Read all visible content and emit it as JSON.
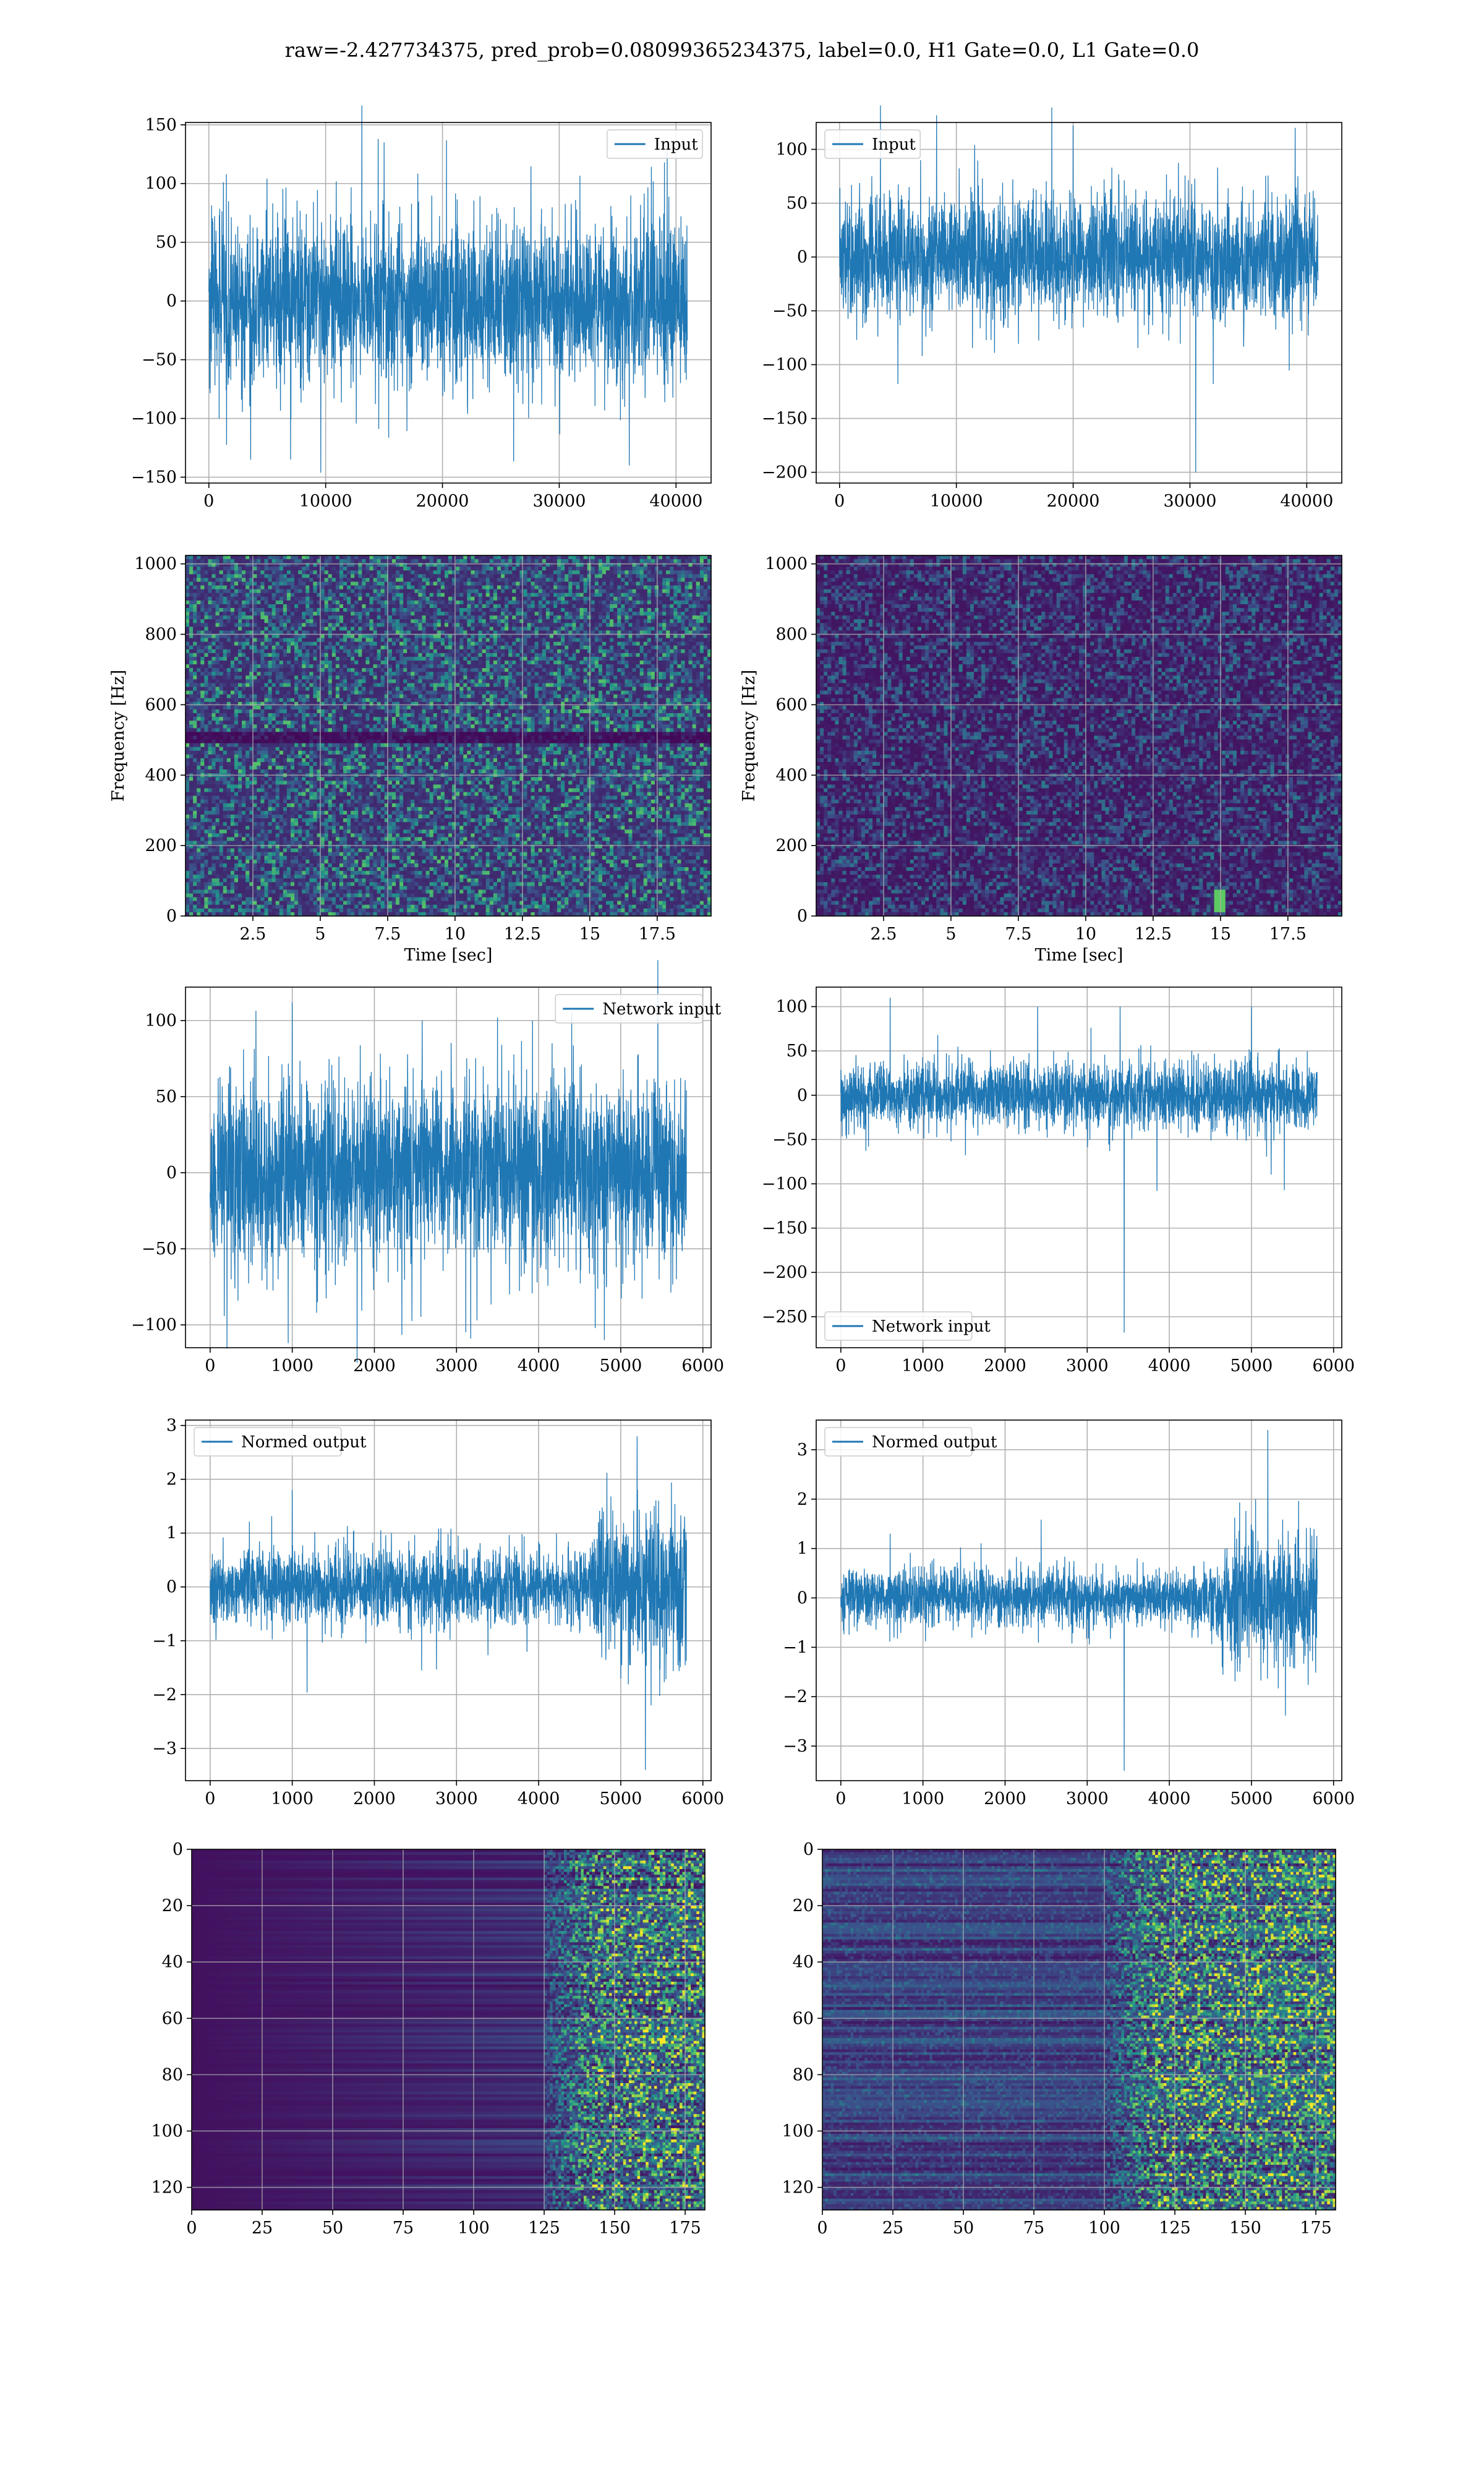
{
  "figure": {
    "title": "raw=-2.427734375, pred_prob=0.08099365234375, label=0.0, H1 Gate=0.0, L1 Gate=0.0"
  },
  "colors": {
    "line": "#1f77b4",
    "grid": "#b0b0b0",
    "viridis_dark": "#440154"
  },
  "chart_data": [
    {
      "id": "h1-input",
      "type": "line",
      "position": "row1-left",
      "xlim": [
        -2000,
        43000
      ],
      "ylim": [
        -155,
        152
      ],
      "xticks": [
        0,
        10000,
        20000,
        30000,
        40000
      ],
      "yticks": [
        -150,
        -100,
        -50,
        0,
        50,
        100,
        150
      ],
      "legend": {
        "loc": "upper-right"
      },
      "series": [
        {
          "name": "Input",
          "n_points": 40960,
          "envelope": [
            [
              0,
              -70,
              70
            ],
            [
              40960,
              -70,
              70
            ]
          ],
          "spikes": [
            [
              1500,
              108
            ],
            [
              7000,
              -135
            ],
            [
              14500,
              138
            ],
            [
              36000,
              -140
            ],
            [
              39000,
              118
            ],
            [
              15000,
              135
            ]
          ]
        }
      ]
    },
    {
      "id": "l1-input",
      "type": "line",
      "position": "row1-right",
      "xlim": [
        -2000,
        43000
      ],
      "ylim": [
        -210,
        125
      ],
      "xticks": [
        0,
        10000,
        20000,
        30000,
        40000
      ],
      "yticks": [
        -200,
        -150,
        -100,
        -50,
        0,
        50,
        100
      ],
      "legend": {
        "loc": "upper-left"
      },
      "series": [
        {
          "name": "Input",
          "n_points": 40960,
          "envelope": [
            [
              0,
              -55,
              55
            ],
            [
              40960,
              -55,
              55
            ]
          ],
          "spikes": [
            [
              30500,
              -200
            ],
            [
              20000,
              122
            ],
            [
              39000,
              120
            ],
            [
              5000,
              -118
            ],
            [
              32000,
              -118
            ]
          ]
        }
      ]
    },
    {
      "id": "h1-spectrogram",
      "type": "heatmap",
      "position": "row2-left",
      "xlabel": "Time [sec]",
      "ylabel": "Frequency [Hz]",
      "xlim": [
        0,
        19.5
      ],
      "ylim": [
        0,
        1024
      ],
      "xticks": [
        2.5,
        5.0,
        7.5,
        10.0,
        12.5,
        15.0,
        17.5
      ],
      "yticks": [
        0,
        200,
        400,
        600,
        800,
        1000
      ],
      "colormap": "viridis",
      "intensity": "moderate",
      "bright_lines_hz": [
        60,
        1000
      ],
      "dark_band_hz": [
        490,
        520
      ]
    },
    {
      "id": "l1-spectrogram",
      "type": "heatmap",
      "position": "row2-right",
      "xlabel": "Time [sec]",
      "ylabel": "Frequency [Hz]",
      "xlim": [
        0,
        19.5
      ],
      "ylim": [
        0,
        1024
      ],
      "xticks": [
        2.5,
        5.0,
        7.5,
        10.0,
        12.5,
        15.0,
        17.5
      ],
      "yticks": [
        0,
        200,
        400,
        600,
        800,
        1000
      ],
      "colormap": "viridis",
      "intensity": "low",
      "bright_spot": {
        "t": 15.0,
        "f_range": [
          10,
          70
        ]
      }
    },
    {
      "id": "h1-network-input",
      "type": "line",
      "position": "row3-left",
      "xlim": [
        -300,
        6100
      ],
      "ylim": [
        -115,
        122
      ],
      "xticks": [
        0,
        1000,
        2000,
        3000,
        4000,
        5000,
        6000
      ],
      "yticks": [
        -100,
        -50,
        0,
        50,
        100
      ],
      "legend": {
        "loc": "upper-right"
      },
      "series": [
        {
          "name": "Network input",
          "n_points": 5800,
          "envelope": [
            [
              0,
              -60,
              60
            ],
            [
              5800,
              -60,
              60
            ]
          ],
          "spikes": [
            [
              950,
              -112
            ],
            [
              1000,
              112
            ],
            [
              4800,
              -110
            ],
            [
              3500,
              102
            ]
          ]
        }
      ]
    },
    {
      "id": "l1-network-input",
      "type": "line",
      "position": "row3-right",
      "xlim": [
        -300,
        6100
      ],
      "ylim": [
        -285,
        122
      ],
      "xticks": [
        0,
        1000,
        2000,
        3000,
        4000,
        5000,
        6000
      ],
      "yticks": [
        -250,
        -200,
        -150,
        -100,
        -50,
        0,
        50,
        100
      ],
      "legend": {
        "loc": "lower-left"
      },
      "series": [
        {
          "name": "Network input",
          "n_points": 5800,
          "envelope": [
            [
              0,
              -38,
              38
            ],
            [
              5800,
              -38,
              38
            ]
          ],
          "spikes": [
            [
              3450,
              -268
            ],
            [
              600,
              110
            ],
            [
              3850,
              -108
            ],
            [
              3400,
              100
            ],
            [
              5000,
              100
            ]
          ]
        }
      ]
    },
    {
      "id": "h1-normed-output",
      "type": "line",
      "position": "row4-left",
      "xlim": [
        -300,
        6100
      ],
      "ylim": [
        -3.6,
        3.1
      ],
      "xticks": [
        0,
        1000,
        2000,
        3000,
        4000,
        5000,
        6000
      ],
      "yticks": [
        -3,
        -2,
        -1,
        0,
        1,
        2,
        3
      ],
      "legend": {
        "loc": "upper-left"
      },
      "series": [
        {
          "name": "Normed output",
          "n_points": 5800,
          "envelope": [
            [
              0,
              -0.7,
              0.7
            ],
            [
              4600,
              -0.7,
              0.7
            ],
            [
              4700,
              -1.4,
              1.4
            ],
            [
              5800,
              -1.5,
              1.5
            ]
          ],
          "spikes": [
            [
              5300,
              -3.4
            ],
            [
              5200,
              2.8
            ],
            [
              1000,
              1.8
            ]
          ]
        }
      ]
    },
    {
      "id": "l1-normed-output",
      "type": "line",
      "position": "row4-right",
      "xlim": [
        -300,
        6100
      ],
      "ylim": [
        -3.7,
        3.6
      ],
      "xticks": [
        0,
        1000,
        2000,
        3000,
        4000,
        5000,
        6000
      ],
      "yticks": [
        -3,
        -2,
        -1,
        0,
        1,
        2,
        3
      ],
      "legend": {
        "loc": "upper-left"
      },
      "series": [
        {
          "name": "Normed output",
          "n_points": 5800,
          "envelope": [
            [
              0,
              -0.6,
              0.6
            ],
            [
              3000,
              -0.6,
              0.6
            ],
            [
              3600,
              -0.45,
              0.45
            ],
            [
              4500,
              -0.6,
              0.6
            ],
            [
              4700,
              -1.2,
              1.2
            ],
            [
              5800,
              -1.3,
              1.3
            ]
          ],
          "spikes": [
            [
              3450,
              -3.5
            ],
            [
              5200,
              3.4
            ],
            [
              600,
              1.3
            ]
          ]
        }
      ]
    },
    {
      "id": "h1-feature-map",
      "type": "heatmap",
      "position": "row5-left",
      "xlim": [
        0,
        182
      ],
      "ylim": [
        128,
        0
      ],
      "xticks": [
        0,
        25,
        50,
        75,
        100,
        125,
        150,
        175
      ],
      "yticks": [
        0,
        20,
        40,
        60,
        80,
        100,
        120
      ],
      "colormap": "viridis",
      "activity_onset_col": 125
    },
    {
      "id": "l1-feature-map",
      "type": "heatmap",
      "position": "row5-right",
      "xlim": [
        0,
        182
      ],
      "ylim": [
        128,
        0
      ],
      "xticks": [
        0,
        25,
        50,
        75,
        100,
        125,
        150,
        175
      ],
      "yticks": [
        0,
        20,
        40,
        60,
        80,
        100,
        120
      ],
      "colormap": "viridis",
      "activity_onset_col": 100
    }
  ]
}
